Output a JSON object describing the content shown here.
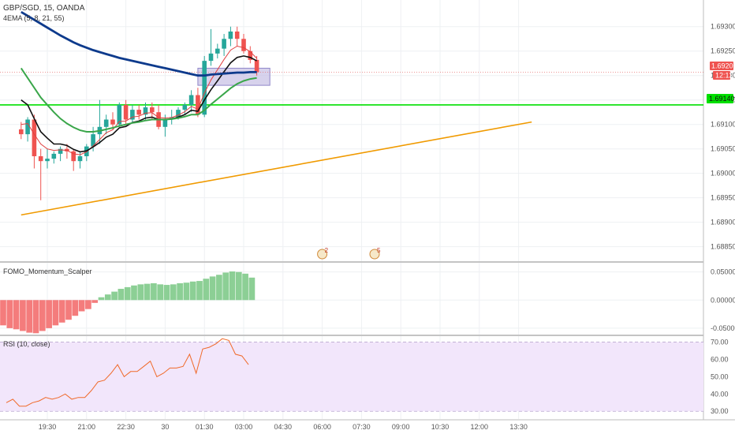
{
  "header": {
    "symbol": "GBP/SGD, 15, OANDA",
    "ema_study": "4EMA (5, 8, 21, 55)"
  },
  "panes": {
    "momentum_title": "FOMO_Momentum_Scalper",
    "rsi_title": "RSI (10, close)"
  },
  "badges": {
    "price_now": "1.69207",
    "countdown": "12:12",
    "hline_price": "1.69140"
  },
  "events": [
    {
      "label": "2",
      "time": "06:00"
    },
    {
      "label": "5",
      "time": "08:00"
    }
  ],
  "colors": {
    "bull": "#26a69a",
    "bear": "#ef5350",
    "ema_fast": "#e04040",
    "ema_black": "#111111",
    "ema_green": "#3aa64a",
    "ema_blue": "#0d3a8c",
    "trendline": "#f09a00",
    "hline": "#00e000",
    "zone": "#c9c3e6",
    "mom_pos": "#8ccf95",
    "mom_neg": "#f47c7c",
    "rsi_line": "#f06a2a",
    "rsi_band": "#f2e6fb"
  },
  "chart_data": [
    {
      "type": "candlestick",
      "title": "GBP/SGD, 15, OANDA",
      "x_ticks": [
        "19:30",
        "21:00",
        "22:30",
        "30",
        "01:30",
        "03:00",
        "04:30",
        "06:00",
        "07:30",
        "09:00",
        "10:30",
        "12:00",
        "13:30"
      ],
      "y_ticks": [
        "1.69300",
        "1.69250",
        "1.69200",
        "1.69150",
        "1.69100",
        "1.69050",
        "1.69000",
        "1.68950",
        "1.68900",
        "1.68850"
      ],
      "ylim": [
        1.68822,
        1.69348
      ],
      "candles": [
        {
          "t": "18:30",
          "o": 1.6909,
          "h": 1.69105,
          "l": 1.6907,
          "c": 1.6908
        },
        {
          "t": "18:45",
          "o": 1.6908,
          "h": 1.69115,
          "l": 1.69065,
          "c": 1.6911
        },
        {
          "t": "19:00",
          "o": 1.6911,
          "h": 1.6912,
          "l": 1.6901,
          "c": 1.69035
        },
        {
          "t": "19:15",
          "o": 1.69035,
          "h": 1.6905,
          "l": 1.68945,
          "c": 1.69025
        },
        {
          "t": "19:30",
          "o": 1.69025,
          "h": 1.6905,
          "l": 1.6901,
          "c": 1.6903
        },
        {
          "t": "19:45",
          "o": 1.6903,
          "h": 1.69045,
          "l": 1.6902,
          "c": 1.6904
        },
        {
          "t": "20:00",
          "o": 1.6904,
          "h": 1.69055,
          "l": 1.69025,
          "c": 1.6905
        },
        {
          "t": "20:15",
          "o": 1.6905,
          "h": 1.6906,
          "l": 1.6903,
          "c": 1.69045
        },
        {
          "t": "20:30",
          "o": 1.69045,
          "h": 1.6905,
          "l": 1.69005,
          "c": 1.69025
        },
        {
          "t": "20:45",
          "o": 1.69025,
          "h": 1.69045,
          "l": 1.6901,
          "c": 1.69035
        },
        {
          "t": "21:00",
          "o": 1.69035,
          "h": 1.6906,
          "l": 1.69025,
          "c": 1.69055
        },
        {
          "t": "21:15",
          "o": 1.69055,
          "h": 1.69095,
          "l": 1.69045,
          "c": 1.6908
        },
        {
          "t": "21:30",
          "o": 1.6908,
          "h": 1.6915,
          "l": 1.6906,
          "c": 1.69095
        },
        {
          "t": "21:45",
          "o": 1.69095,
          "h": 1.6912,
          "l": 1.6908,
          "c": 1.6911
        },
        {
          "t": "22:00",
          "o": 1.6911,
          "h": 1.69125,
          "l": 1.6909,
          "c": 1.691
        },
        {
          "t": "22:15",
          "o": 1.691,
          "h": 1.69145,
          "l": 1.69095,
          "c": 1.6914
        },
        {
          "t": "22:30",
          "o": 1.6914,
          "h": 1.6915,
          "l": 1.691,
          "c": 1.6911
        },
        {
          "t": "22:45",
          "o": 1.6911,
          "h": 1.6914,
          "l": 1.69105,
          "c": 1.6913
        },
        {
          "t": "23:00",
          "o": 1.6913,
          "h": 1.6914,
          "l": 1.6911,
          "c": 1.6912
        },
        {
          "t": "23:15",
          "o": 1.6912,
          "h": 1.69145,
          "l": 1.6911,
          "c": 1.69135
        },
        {
          "t": "23:30",
          "o": 1.69135,
          "h": 1.69145,
          "l": 1.6911,
          "c": 1.69125
        },
        {
          "t": "23:45",
          "o": 1.69125,
          "h": 1.6914,
          "l": 1.6909,
          "c": 1.69095
        },
        {
          "t": "00:00",
          "o": 1.69095,
          "h": 1.6912,
          "l": 1.69075,
          "c": 1.6911
        },
        {
          "t": "00:15",
          "o": 1.6911,
          "h": 1.6913,
          "l": 1.691,
          "c": 1.69115
        },
        {
          "t": "00:30",
          "o": 1.69115,
          "h": 1.69135,
          "l": 1.6911,
          "c": 1.6913
        },
        {
          "t": "00:45",
          "o": 1.6913,
          "h": 1.69145,
          "l": 1.6912,
          "c": 1.6914
        },
        {
          "t": "01:00",
          "o": 1.6914,
          "h": 1.6917,
          "l": 1.69125,
          "c": 1.6916
        },
        {
          "t": "01:15",
          "o": 1.6916,
          "h": 1.69175,
          "l": 1.69115,
          "c": 1.6912
        },
        {
          "t": "01:30",
          "o": 1.6912,
          "h": 1.6924,
          "l": 1.69115,
          "c": 1.6923
        },
        {
          "t": "01:45",
          "o": 1.6923,
          "h": 1.69295,
          "l": 1.6922,
          "c": 1.69245
        },
        {
          "t": "02:00",
          "o": 1.69245,
          "h": 1.69265,
          "l": 1.69235,
          "c": 1.69255
        },
        {
          "t": "02:15",
          "o": 1.69255,
          "h": 1.69285,
          "l": 1.6924,
          "c": 1.69275
        },
        {
          "t": "02:30",
          "o": 1.69275,
          "h": 1.693,
          "l": 1.6926,
          "c": 1.6929
        },
        {
          "t": "02:45",
          "o": 1.6929,
          "h": 1.693,
          "l": 1.6926,
          "c": 1.69275
        },
        {
          "t": "03:00",
          "o": 1.69275,
          "h": 1.69285,
          "l": 1.69245,
          "c": 1.6925
        },
        {
          "t": "03:15",
          "o": 1.6925,
          "h": 1.6926,
          "l": 1.69225,
          "c": 1.69232
        },
        {
          "t": "03:30",
          "o": 1.69232,
          "h": 1.6924,
          "l": 1.692,
          "c": 1.69207
        }
      ],
      "ema_lines": [
        {
          "name": "EMA 5",
          "values": [
            1.691,
            1.69102,
            1.6908,
            1.6906,
            1.6905,
            1.69047,
            1.69048,
            1.69047,
            1.6904,
            1.69038,
            1.69044,
            1.69056,
            1.69069,
            1.69083,
            1.69089,
            1.69106,
            1.69107,
            1.69115,
            1.69117,
            1.69123,
            1.69124,
            1.69114,
            1.69113,
            1.69114,
            1.69119,
            1.69126,
            1.69137,
            1.69131,
            1.69164,
            1.69191,
            1.69212,
            1.69233,
            1.69252,
            1.6926,
            1.69257,
            1.69249,
            1.69235
          ]
        },
        {
          "name": "EMA 8",
          "values": [
            1.6915,
            1.6914,
            1.69112,
            1.69085,
            1.69072,
            1.6906,
            1.6906,
            1.69057,
            1.69049,
            1.69044,
            1.69046,
            1.69054,
            1.69063,
            1.69074,
            1.6908,
            1.69093,
            1.69096,
            1.69104,
            1.69107,
            1.69113,
            1.69115,
            1.6911,
            1.6911,
            1.69111,
            1.69115,
            1.6912,
            1.69129,
            1.69127,
            1.6915,
            1.69171,
            1.69189,
            1.69208,
            1.69226,
            1.69237,
            1.6924,
            1.69237,
            1.6923
          ]
        },
        {
          "name": "EMA 21",
          "values": [
            1.69215,
            1.69195,
            1.69175,
            1.69155,
            1.6914,
            1.69125,
            1.69112,
            1.69102,
            1.69094,
            1.69088,
            1.69085,
            1.69085,
            1.69087,
            1.6909,
            1.69093,
            1.69097,
            1.691,
            1.69103,
            1.69105,
            1.69108,
            1.6911,
            1.6911,
            1.6911,
            1.69111,
            1.69113,
            1.69116,
            1.6912,
            1.6912,
            1.69129,
            1.69141,
            1.69152,
            1.69163,
            1.69174,
            1.69183,
            1.69189,
            1.69193,
            1.69195
          ]
        },
        {
          "name": "EMA 55",
          "values": [
            1.6933,
            1.69322,
            1.69314,
            1.69306,
            1.69298,
            1.6929,
            1.69282,
            1.69275,
            1.69268,
            1.69262,
            1.69257,
            1.69252,
            1.69248,
            1.69244,
            1.6924,
            1.69236,
            1.69233,
            1.6923,
            1.69227,
            1.69224,
            1.69221,
            1.69218,
            1.69215,
            1.69212,
            1.69209,
            1.69206,
            1.69203,
            1.692,
            1.692,
            1.69202,
            1.69203,
            1.69204,
            1.69205,
            1.69206,
            1.69206,
            1.69207,
            1.69207
          ]
        }
      ],
      "horizontal_line": 1.6914,
      "trendline": {
        "from": {
          "t": "18:30",
          "price": 1.68915
        },
        "to": {
          "t": "14:00",
          "price": 1.69105
        }
      },
      "zone": {
        "from_t": "01:15",
        "to_t": "04:00",
        "top": 1.69215,
        "bottom": 1.6918
      }
    },
    {
      "type": "bar",
      "title": "FOMO_Momentum_Scalper",
      "y_ticks": [
        "0.05000",
        "0.00000",
        "-0.05000"
      ],
      "ylim": [
        -0.06,
        0.065
      ],
      "values": [
        -0.045,
        -0.05,
        -0.052,
        -0.055,
        -0.058,
        -0.059,
        -0.055,
        -0.05,
        -0.045,
        -0.04,
        -0.035,
        -0.028,
        -0.02,
        -0.016,
        -0.005,
        0.005,
        0.01,
        0.015,
        0.02,
        0.023,
        0.026,
        0.028,
        0.029,
        0.03,
        0.028,
        0.027,
        0.028,
        0.03,
        0.031,
        0.033,
        0.034,
        0.038,
        0.042,
        0.045,
        0.049,
        0.051,
        0.05,
        0.047,
        0.04
      ]
    },
    {
      "type": "line",
      "title": "RSI (10, close)",
      "y_ticks": [
        "70.00",
        "60.00",
        "50.00",
        "40.00",
        "30.00"
      ],
      "ylim": [
        26,
        73
      ],
      "band": [
        30,
        70
      ],
      "values": [
        35,
        37,
        33,
        33,
        35,
        36,
        38,
        37,
        38,
        40,
        37,
        38,
        38,
        42,
        47,
        48,
        52,
        57,
        50,
        53,
        53,
        56,
        59,
        50,
        52,
        55,
        55,
        56,
        63,
        52,
        66,
        67,
        69,
        72,
        71,
        63,
        62,
        57
      ]
    }
  ]
}
